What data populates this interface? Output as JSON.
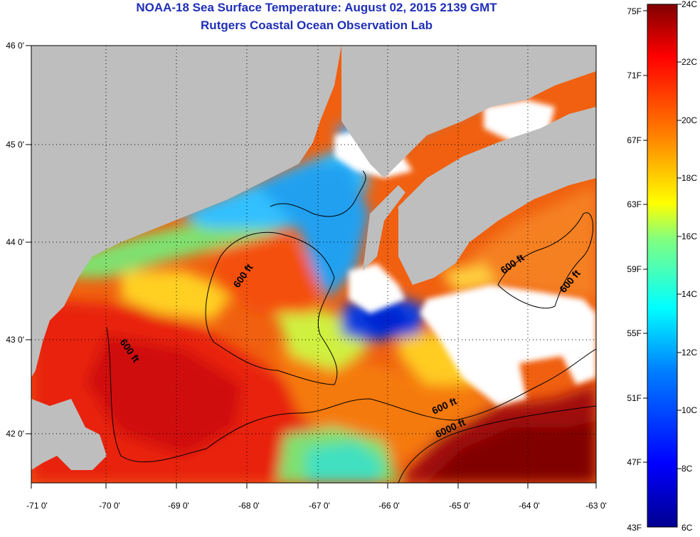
{
  "title": "NOAA-18 Sea Surface Temperature:  August 02, 2015 2139 GMT",
  "subtitle": "Rutgers Coastal Ocean Observation Lab",
  "map": {
    "lon_ticks": [
      "-71 0'",
      "-70 0'",
      "-69 0'",
      "-68 0'",
      "-67 0'",
      "-66 0'",
      "-65 0'",
      "-64 0'",
      "-63 0'"
    ],
    "lat_ticks": [
      "46 0'",
      "45 0'",
      "44 0'",
      "43 0'",
      "42 0'"
    ],
    "contour_labels": [
      "600 ft",
      "600 ft",
      "600 ft",
      "600 ft",
      "6000 ft"
    ],
    "colors": {
      "land": "#bebebe",
      "cloud": "#ffffff",
      "background": "#ffffff"
    }
  },
  "colorbar": {
    "fahrenheit": [
      "75F",
      "71F",
      "67F",
      "63F",
      "59F",
      "55F",
      "51F",
      "47F",
      "43F"
    ],
    "celsius": [
      "24C",
      "22C",
      "20C",
      "18C",
      "16C",
      "14C",
      "12C",
      "10C",
      "8C",
      "6C"
    ],
    "gradient": [
      "#00008f",
      "#0000ff",
      "#0080ff",
      "#00ffff",
      "#80ff80",
      "#ffff00",
      "#ff8000",
      "#ff0000",
      "#800000"
    ]
  }
}
